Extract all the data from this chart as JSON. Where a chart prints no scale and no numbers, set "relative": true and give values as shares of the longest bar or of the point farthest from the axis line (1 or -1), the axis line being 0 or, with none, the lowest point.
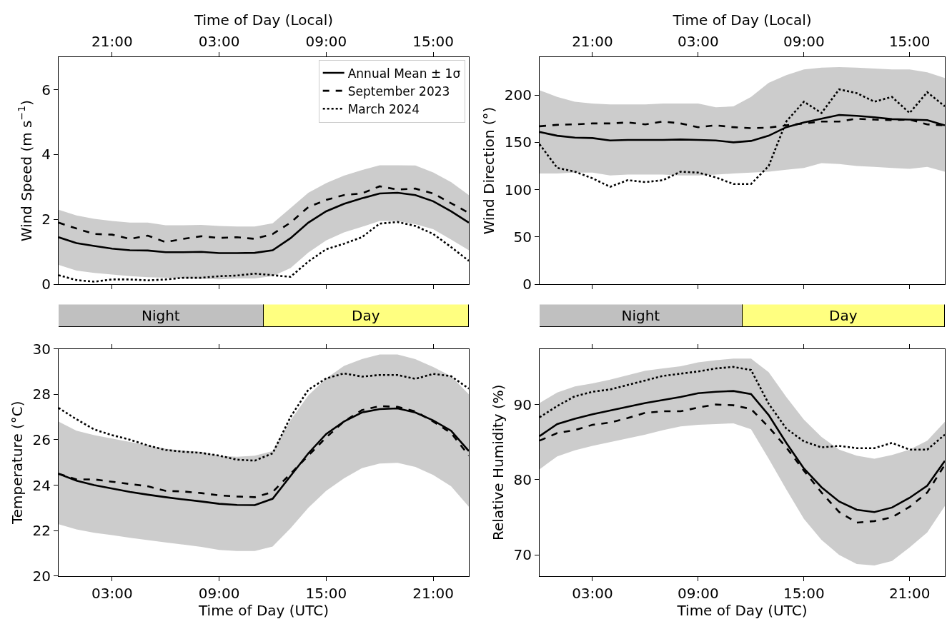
{
  "chart_data": [
    {
      "type": "line",
      "ylabel": "Wind Speed (m s$^{−1}$)",
      "x2label": "Time of Day (Local)",
      "categories": [
        null,
        null,
        null,
        "21:00",
        null,
        null,
        null,
        null,
        null,
        "03:00",
        null,
        null,
        null,
        null,
        null,
        "09:00",
        null,
        null,
        null,
        null,
        null,
        "15:00",
        null,
        null
      ],
      "ylim": [
        0,
        7
      ],
      "yticks": [
        0,
        2,
        4,
        6
      ],
      "legend": "top right",
      "series": [
        {
          "name": "Annual Mean ± 1σ",
          "color": "#000000",
          "line_style": "solid",
          "values": [
            1.45,
            1.27,
            1.18,
            1.1,
            1.05,
            1.04,
            0.99,
            0.99,
            1.0,
            0.96,
            0.96,
            0.97,
            1.05,
            1.42,
            1.9,
            2.25,
            2.48,
            2.65,
            2.8,
            2.82,
            2.75,
            2.56,
            2.25,
            1.9
          ],
          "lower": [
            0.6,
            0.42,
            0.35,
            0.3,
            0.25,
            0.22,
            0.2,
            0.18,
            0.17,
            0.15,
            0.18,
            0.18,
            0.25,
            0.5,
            0.98,
            1.35,
            1.6,
            1.77,
            1.95,
            1.95,
            1.85,
            1.7,
            1.38,
            1.05
          ],
          "upper": [
            2.3,
            2.12,
            2.02,
            1.95,
            1.9,
            1.9,
            1.82,
            1.82,
            1.83,
            1.8,
            1.78,
            1.78,
            1.88,
            2.35,
            2.82,
            3.12,
            3.35,
            3.52,
            3.67,
            3.67,
            3.66,
            3.45,
            3.15,
            2.75
          ]
        },
        {
          "name": "September 2023",
          "color": "#000000",
          "line_style": "dashed",
          "values": [
            1.9,
            1.72,
            1.55,
            1.53,
            1.4,
            1.5,
            1.3,
            1.4,
            1.48,
            1.43,
            1.45,
            1.4,
            1.55,
            1.9,
            2.38,
            2.6,
            2.75,
            2.8,
            3.02,
            2.92,
            2.95,
            2.8,
            2.5,
            2.2
          ]
        },
        {
          "name": "March 2024",
          "color": "#000000",
          "line_style": "dotted",
          "values": [
            0.28,
            0.13,
            0.08,
            0.15,
            0.15,
            0.12,
            0.15,
            0.2,
            0.2,
            0.25,
            0.27,
            0.33,
            0.28,
            0.23,
            0.7,
            1.08,
            1.25,
            1.45,
            1.87,
            1.92,
            1.8,
            1.55,
            1.15,
            0.72
          ]
        }
      ]
    },
    {
      "type": "line",
      "ylabel": "Wind Direction (°)",
      "x2label": "Time of Day (Local)",
      "categories": [
        null,
        null,
        null,
        "21:00",
        null,
        null,
        null,
        null,
        null,
        "03:00",
        null,
        null,
        null,
        null,
        null,
        "09:00",
        null,
        null,
        null,
        null,
        null,
        "15:00",
        null,
        null
      ],
      "ylim": [
        0,
        240
      ],
      "yticks": [
        0,
        50,
        100,
        150,
        200
      ],
      "series": [
        {
          "color": "#000000",
          "line_style": "solid",
          "values": [
            161,
            157,
            155,
            154.5,
            152,
            152.5,
            152.5,
            152.5,
            153,
            152.5,
            152,
            150,
            151.5,
            157,
            166,
            171,
            175,
            179,
            178,
            176.5,
            174.5,
            174,
            173.5,
            168
          ],
          "lower": [
            117,
            117,
            118,
            118,
            115,
            116,
            116,
            116,
            115,
            115,
            116,
            117,
            118,
            119,
            121,
            123,
            128,
            127,
            125,
            124,
            123,
            122,
            124,
            119
          ],
          "upper": [
            205,
            198,
            193,
            191,
            190,
            190,
            190,
            191,
            191,
            191,
            187,
            188,
            198,
            213,
            221,
            227,
            229,
            229.5,
            229,
            228,
            227,
            227,
            224,
            218
          ]
        },
        {
          "color": "#000000",
          "line_style": "dashed",
          "values": [
            167,
            168.5,
            169,
            170,
            170,
            171,
            169,
            172,
            170,
            166,
            168,
            166,
            165,
            165.5,
            168,
            170,
            172,
            172,
            175,
            174,
            173.5,
            174,
            169,
            168
          ]
        },
        {
          "color": "#000000",
          "line_style": "dotted",
          "values": [
            148,
            123,
            119,
            112,
            103,
            110,
            108,
            110,
            119,
            118,
            113,
            106,
            106,
            125,
            172,
            193,
            181,
            206,
            202,
            193,
            198,
            181,
            203,
            188
          ]
        }
      ]
    },
    {
      "type": "bar",
      "orientation": "horizontal",
      "stacked": true,
      "relative": true,
      "categories": [
        null
      ],
      "series": [
        {
          "name": "Night",
          "color": "#c0c0c0",
          "values": [
            0.5
          ]
        },
        {
          "name": "Day",
          "color": "#ffff80",
          "values": [
            0.5
          ]
        }
      ]
    },
    {
      "type": "bar",
      "orientation": "horizontal",
      "stacked": true,
      "relative": true,
      "categories": [
        null
      ],
      "series": [
        {
          "name": "Night",
          "color": "#c0c0c0",
          "values": [
            0.5
          ]
        },
        {
          "name": "Day",
          "color": "#ffff80",
          "values": [
            0.5
          ]
        }
      ]
    },
    {
      "type": "line",
      "ylabel": "Temperature (°C)",
      "xlabel": "Time of Day (UTC)",
      "x": [
        0,
        1,
        2,
        3,
        4,
        5,
        6,
        7,
        8,
        9,
        10,
        11,
        12,
        13,
        14,
        15,
        16,
        17,
        18,
        19,
        20,
        21,
        22,
        23
      ],
      "xlim": [
        0,
        23
      ],
      "xticks": [
        {
          "value": 3,
          "label": "03:00"
        },
        {
          "value": 9,
          "label": "09:00"
        },
        {
          "value": 15,
          "label": "15:00"
        },
        {
          "value": 21,
          "label": "21:00"
        }
      ],
      "ylim": [
        20,
        30
      ],
      "yticks": [
        20,
        22,
        24,
        26,
        28,
        30
      ],
      "series": [
        {
          "color": "#000000",
          "line_style": "solid",
          "values": [
            24.5,
            24.2,
            24.0,
            23.85,
            23.7,
            23.58,
            23.47,
            23.37,
            23.28,
            23.18,
            23.13,
            23.12,
            23.4,
            24.4,
            25.4,
            26.25,
            26.8,
            27.2,
            27.35,
            27.38,
            27.2,
            26.85,
            26.4,
            25.5
          ],
          "lower": [
            22.28,
            22.05,
            21.9,
            21.8,
            21.68,
            21.58,
            21.48,
            21.38,
            21.28,
            21.15,
            21.1,
            21.1,
            21.3,
            22.1,
            23.0,
            23.75,
            24.3,
            24.75,
            24.95,
            24.98,
            24.8,
            24.45,
            23.95,
            23.05
          ],
          "upper": [
            26.8,
            26.4,
            26.2,
            26.05,
            25.9,
            25.75,
            25.6,
            25.52,
            25.47,
            25.3,
            25.25,
            25.3,
            25.5,
            26.85,
            27.95,
            28.7,
            29.25,
            29.55,
            29.75,
            29.75,
            29.55,
            29.2,
            28.8,
            28.0
          ]
        },
        {
          "color": "#000000",
          "line_style": "dashed",
          "values": [
            24.5,
            24.25,
            24.25,
            24.15,
            24.05,
            23.95,
            23.75,
            23.72,
            23.65,
            23.55,
            23.5,
            23.47,
            23.7,
            24.5,
            25.3,
            26.1,
            26.8,
            27.3,
            27.48,
            27.45,
            27.25,
            26.8,
            26.3,
            25.3
          ]
        },
        {
          "color": "#000000",
          "line_style": "dotted",
          "values": [
            27.4,
            26.9,
            26.45,
            26.2,
            26.0,
            25.75,
            25.55,
            25.47,
            25.42,
            25.3,
            25.12,
            25.08,
            25.4,
            27.0,
            28.2,
            28.7,
            28.92,
            28.78,
            28.85,
            28.85,
            28.68,
            28.9,
            28.8,
            28.25
          ]
        }
      ]
    },
    {
      "type": "line",
      "ylabel": "Relative Humidity (%)",
      "xlabel": "Time of Day (UTC)",
      "x": [
        0,
        1,
        2,
        3,
        4,
        5,
        6,
        7,
        8,
        9,
        10,
        11,
        12,
        13,
        14,
        15,
        16,
        17,
        18,
        19,
        20,
        21,
        22,
        23
      ],
      "xlim": [
        0,
        23
      ],
      "xticks": [
        {
          "value": 3,
          "label": "03:00"
        },
        {
          "value": 9,
          "label": "09:00"
        },
        {
          "value": 15,
          "label": "15:00"
        },
        {
          "value": 21,
          "label": "21:00"
        }
      ],
      "ylim": [
        67.2,
        97.4
      ],
      "yticks": [
        70,
        80,
        90
      ],
      "series": [
        {
          "color": "#000000",
          "line_style": "solid",
          "values": [
            85.8,
            87.4,
            88.1,
            88.7,
            89.2,
            89.7,
            90.2,
            90.6,
            91.0,
            91.5,
            91.7,
            91.8,
            91.4,
            88.6,
            84.9,
            81.5,
            79.0,
            77.1,
            76.0,
            75.7,
            76.3,
            77.6,
            79.2,
            82.5
          ],
          "lower": [
            81.4,
            83.1,
            83.9,
            84.5,
            85.0,
            85.5,
            86.0,
            86.6,
            87.1,
            87.3,
            87.4,
            87.5,
            86.7,
            82.8,
            78.7,
            74.8,
            72.0,
            70.0,
            68.8,
            68.6,
            69.2,
            71.0,
            73.0,
            76.5
          ],
          "upper": [
            90.2,
            91.6,
            92.4,
            92.8,
            93.3,
            93.9,
            94.5,
            94.8,
            95.1,
            95.6,
            95.9,
            96.1,
            96.1,
            94.3,
            91.0,
            88.0,
            85.7,
            84.0,
            83.2,
            82.8,
            83.3,
            84.0,
            85.2,
            87.7
          ]
        },
        {
          "color": "#000000",
          "line_style": "dashed",
          "values": [
            85.2,
            86.2,
            86.6,
            87.3,
            87.6,
            88.2,
            88.9,
            89.1,
            89.1,
            89.6,
            90.0,
            89.9,
            89.4,
            87.0,
            84.3,
            81.2,
            78.3,
            75.7,
            74.3,
            74.5,
            75.0,
            76.4,
            78.3,
            82.0
          ]
        },
        {
          "color": "#000000",
          "line_style": "dotted",
          "values": [
            88.3,
            89.8,
            91.1,
            91.7,
            92.0,
            92.6,
            93.2,
            93.8,
            94.1,
            94.4,
            94.8,
            95.0,
            94.6,
            90.1,
            86.8,
            85.1,
            84.3,
            84.5,
            84.2,
            84.2,
            84.9,
            84.0,
            84.0,
            86.0
          ]
        }
      ]
    }
  ]
}
